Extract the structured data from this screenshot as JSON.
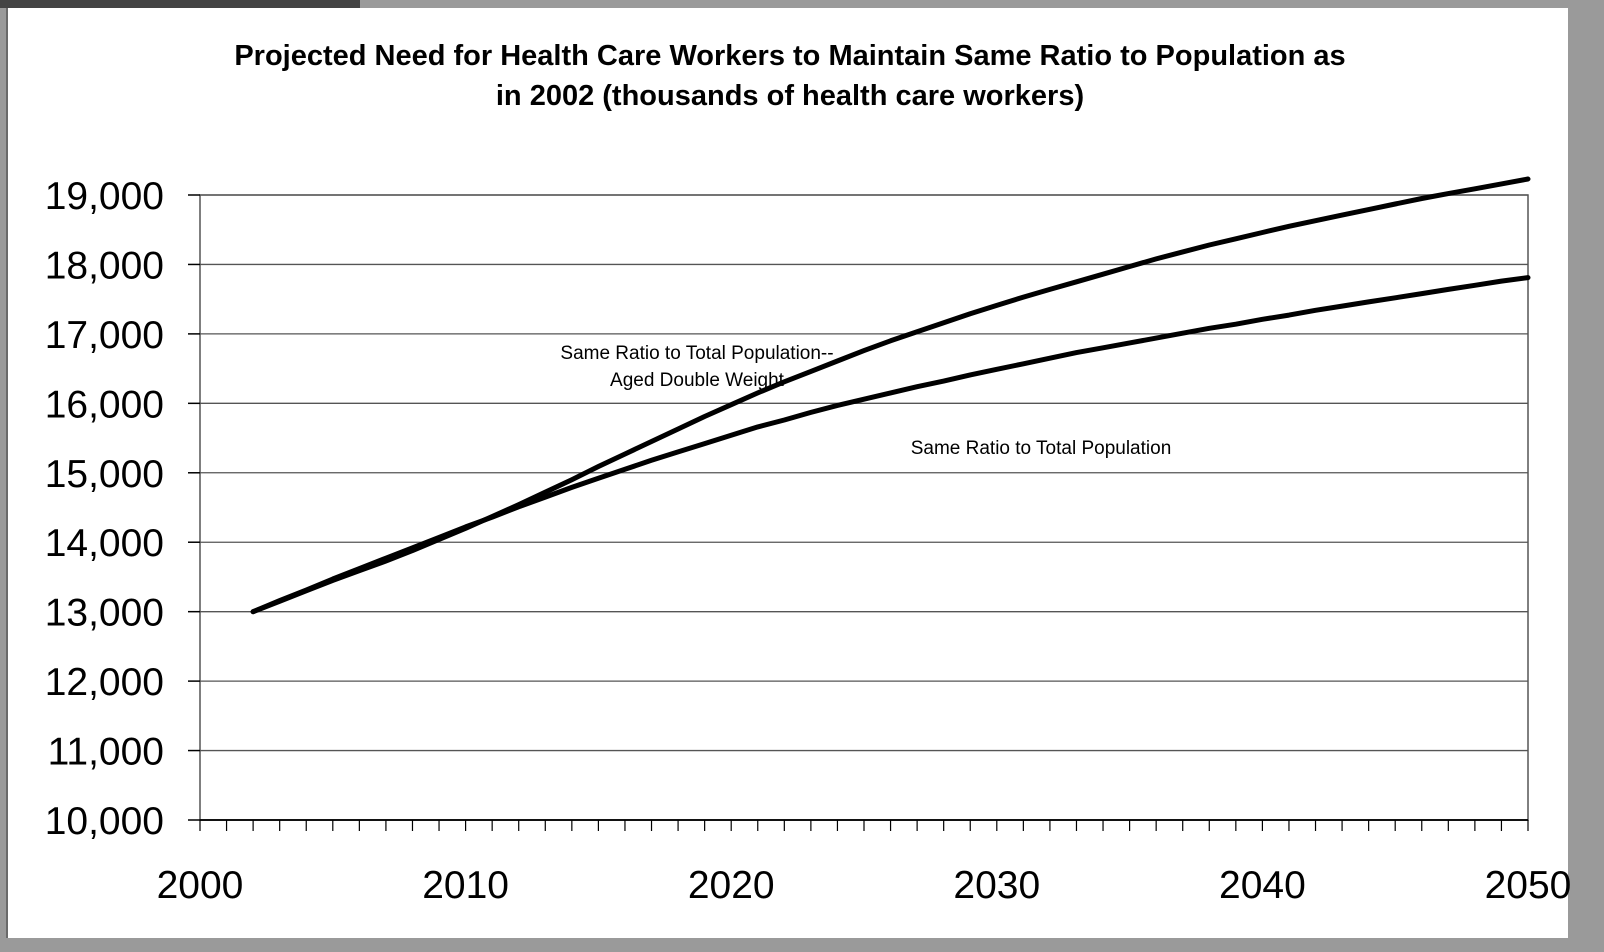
{
  "chart_data": {
    "type": "line",
    "title": "Projected Need for Health Care Workers to Maintain Same Ratio to Population as in 2002   (thousands of health care workers)",
    "title_lines": [
      "Projected Need for Health Care Workers to Maintain Same Ratio to Population as",
      "in 2002   (thousands of health care workers)"
    ],
    "xlabel": "",
    "ylabel": "",
    "xlim": [
      2000,
      2050
    ],
    "ylim": [
      10000,
      19000
    ],
    "x_ticks": [
      2000,
      2010,
      2020,
      2030,
      2040,
      2050
    ],
    "x_tick_labels": [
      "2000",
      "2010",
      "2020",
      "2030",
      "2040",
      "2050"
    ],
    "y_ticks": [
      10000,
      11000,
      12000,
      13000,
      14000,
      15000,
      16000,
      17000,
      18000,
      19000
    ],
    "y_tick_labels": [
      "10,000",
      "11,000",
      "12,000",
      "13,000",
      "14,000",
      "15,000",
      "16,000",
      "17,000",
      "18,000",
      "19,000"
    ],
    "grid": "horizontal",
    "line_color": "#000000",
    "series": [
      {
        "name": "Same Ratio to Total Population",
        "label_lines": [
          "Same Ratio to Total Population"
        ],
        "x": [
          2002,
          2003,
          2004,
          2005,
          2006,
          2007,
          2008,
          2009,
          2010,
          2011,
          2012,
          2013,
          2014,
          2015,
          2016,
          2017,
          2018,
          2019,
          2020,
          2021,
          2022,
          2023,
          2024,
          2025,
          2026,
          2027,
          2028,
          2029,
          2030,
          2031,
          2032,
          2033,
          2034,
          2035,
          2036,
          2037,
          2038,
          2039,
          2040,
          2041,
          2042,
          2043,
          2044,
          2045,
          2046,
          2047,
          2048,
          2049,
          2050
        ],
        "values": [
          13000,
          13160,
          13310,
          13470,
          13620,
          13770,
          13920,
          14070,
          14220,
          14360,
          14510,
          14650,
          14790,
          14920,
          15050,
          15180,
          15300,
          15420,
          15540,
          15660,
          15760,
          15870,
          15970,
          16060,
          16150,
          16240,
          16320,
          16410,
          16490,
          16570,
          16650,
          16730,
          16800,
          16870,
          16940,
          17010,
          17080,
          17140,
          17210,
          17270,
          17340,
          17400,
          17460,
          17520,
          17580,
          17640,
          17700,
          17760,
          17810
        ]
      },
      {
        "name": "Same Ratio to Total Population-- Aged Double Weight",
        "label_lines": [
          "Same Ratio to Total Population--",
          "Aged Double Weight"
        ],
        "x": [
          2002,
          2003,
          2004,
          2005,
          2006,
          2007,
          2008,
          2009,
          2010,
          2011,
          2012,
          2013,
          2014,
          2015,
          2016,
          2017,
          2018,
          2019,
          2020,
          2021,
          2022,
          2023,
          2024,
          2025,
          2026,
          2027,
          2028,
          2029,
          2030,
          2031,
          2032,
          2033,
          2034,
          2035,
          2036,
          2037,
          2038,
          2039,
          2040,
          2041,
          2042,
          2043,
          2044,
          2045,
          2046,
          2047,
          2048,
          2049,
          2050
        ],
        "values": [
          13000,
          13150,
          13300,
          13450,
          13590,
          13730,
          13880,
          14040,
          14200,
          14370,
          14540,
          14720,
          14900,
          15090,
          15270,
          15450,
          15630,
          15810,
          15980,
          16150,
          16310,
          16460,
          16610,
          16760,
          16900,
          17030,
          17160,
          17290,
          17410,
          17530,
          17640,
          17750,
          17860,
          17970,
          18080,
          18180,
          18280,
          18370,
          18460,
          18550,
          18630,
          18710,
          18790,
          18870,
          18950,
          19020,
          19090,
          19160,
          19230
        ]
      }
    ]
  }
}
